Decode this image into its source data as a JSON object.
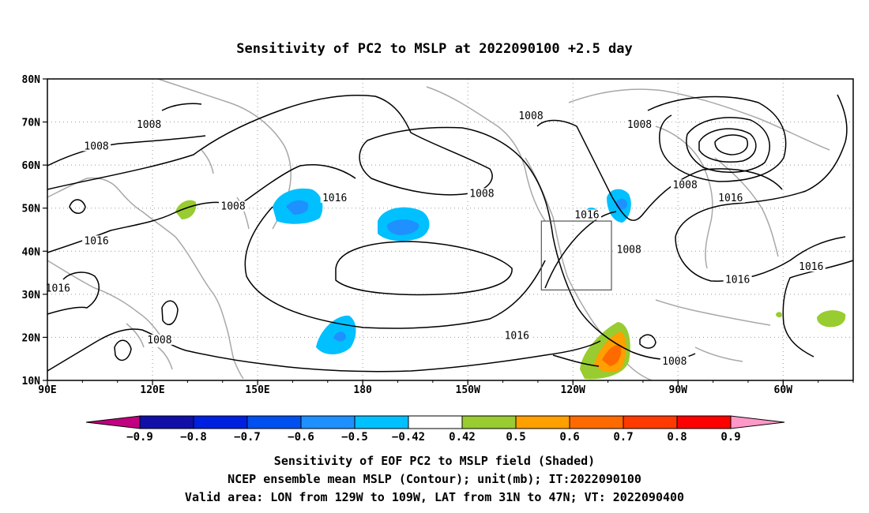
{
  "title": "Sensitivity of PC2 to MSLP at 2022090100 +2.5 day",
  "map": {
    "lon_labels": [
      "90E",
      "120E",
      "150E",
      "180",
      "150W",
      "120W",
      "90W",
      "60W"
    ],
    "lat_labels": [
      "10N",
      "20N",
      "30N",
      "40N",
      "50N",
      "60N",
      "70N",
      "80N"
    ],
    "lon_range": [
      90,
      320
    ],
    "lat_range": [
      10,
      80
    ],
    "gridlines": "dotted",
    "valid_box": {
      "lon_west": "129W",
      "lon_east": "109W",
      "lat_south": "31N",
      "lat_north": "47N"
    },
    "contour_labels": [
      {
        "text": "1008",
        "lon": 119,
        "lat": 69
      },
      {
        "text": "1008",
        "lon": 104,
        "lat": 64
      },
      {
        "text": "1008",
        "lon": 166,
        "lat": 150
      },
      {
        "text": "1008",
        "lon": 228,
        "lat": 71
      },
      {
        "text": "1008",
        "lon": 214,
        "lat": 53
      },
      {
        "text": "1008",
        "lon": 259,
        "lat": 69
      },
      {
        "text": "1008",
        "lon": 143,
        "lat": 50
      },
      {
        "text": "1008",
        "lon": 272,
        "lat": 55
      },
      {
        "text": "1008",
        "lon": 256,
        "lat": 40
      },
      {
        "text": "1008",
        "lon": 122,
        "lat": 19
      },
      {
        "text": "1008",
        "lon": 269,
        "lat": 14
      },
      {
        "text": "1016",
        "lon": 172,
        "lat": 52
      },
      {
        "text": "1016",
        "lon": 104,
        "lat": 42
      },
      {
        "text": "1016",
        "lon": 93,
        "lat": 31
      },
      {
        "text": "1016",
        "lon": 244,
        "lat": 48
      },
      {
        "text": "1016",
        "lon": 224,
        "lat": 20
      },
      {
        "text": "1016",
        "lon": 285,
        "lat": 52
      },
      {
        "text": "1016",
        "lon": 287,
        "lat": 33
      },
      {
        "text": "1016",
        "lon": 308,
        "lat": 36
      }
    ]
  },
  "colorbar": {
    "levels": [
      "-0.9",
      "-0.8",
      "-0.7",
      "-0.6",
      "-0.5",
      "-0.42",
      "0.42",
      "0.5",
      "0.6",
      "0.7",
      "0.8",
      "0.9"
    ],
    "colors": [
      "#c00080",
      "#1010a8",
      "#0020e0",
      "#0050f0",
      "#1e90ff",
      "#00c0ff",
      "#ffffff",
      "#98cc30",
      "#ff9f00",
      "#ff6a00",
      "#ff3a00",
      "#ff0000",
      "#ff98c8"
    ]
  },
  "footer": {
    "line1": "Sensitivity of EOF PC2 to MSLP field (Shaded)",
    "line2": "NCEP ensemble mean MSLP (Contour); unit(mb); IT:2022090100",
    "line3": "Valid area: LON from 129W to 109W, LAT from 31N to 47N; VT: 2022090400"
  }
}
